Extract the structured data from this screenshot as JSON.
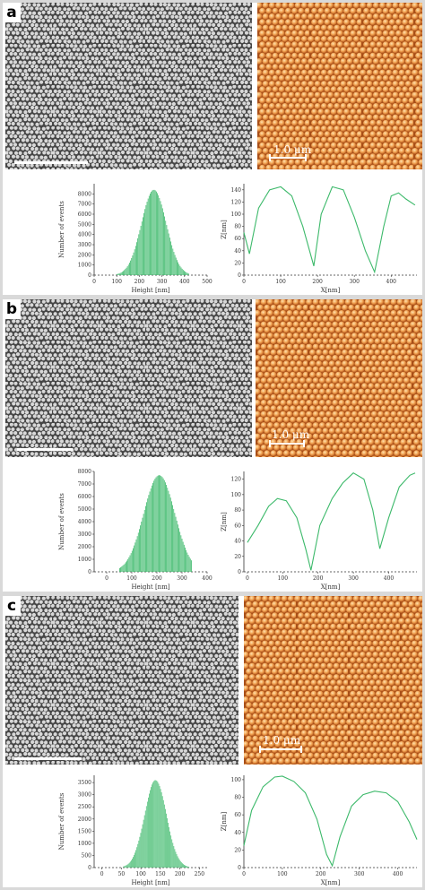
{
  "figure": {
    "panels": [
      {
        "label": "a",
        "afm_scale": "1.0 μm",
        "histogram": {
          "ylabel": "Number of events",
          "xlabel": "Height [nm]",
          "xticks": [
            "0",
            "100",
            "200",
            "300",
            "400",
            "500"
          ],
          "yticks": [
            "0",
            "1000",
            "2000",
            "3000",
            "4000",
            "5000",
            "6000",
            "7000",
            "8000"
          ],
          "xlim": [
            0,
            500
          ],
          "ylim": [
            0,
            9000
          ],
          "center": 265,
          "sigma": 55,
          "peak": 8400,
          "range": [
            100,
            420
          ],
          "color": "#3cb96a"
        },
        "profile": {
          "ylabel": "Z[nm]",
          "xlabel": "X[nm]",
          "xticks": [
            "0",
            "100",
            "200",
            "300",
            "400"
          ],
          "yticks": [
            "0",
            "20",
            "40",
            "60",
            "80",
            "100",
            "120",
            "140"
          ],
          "xlim": [
            0,
            470
          ],
          "ylim": [
            0,
            150
          ],
          "x": [
            0,
            15,
            40,
            70,
            100,
            130,
            160,
            190,
            210,
            240,
            270,
            300,
            330,
            355,
            380,
            400,
            420,
            440,
            465
          ],
          "y": [
            70,
            35,
            110,
            140,
            145,
            130,
            80,
            15,
            100,
            145,
            140,
            95,
            40,
            5,
            80,
            130,
            135,
            125,
            115
          ],
          "color": "#3cb96a"
        }
      },
      {
        "label": "b",
        "afm_scale": "1.0 μm",
        "histogram": {
          "ylabel": "Number of events",
          "xlabel": "Height [nm]",
          "xticks": [
            "0",
            "100",
            "200",
            "300",
            "400"
          ],
          "yticks": [
            "0",
            "1000",
            "2000",
            "3000",
            "4000",
            "5000",
            "6000",
            "7000",
            "8000"
          ],
          "xlim": [
            -50,
            400
          ],
          "ylim": [
            0,
            8000
          ],
          "center": 210,
          "sigma": 62,
          "peak": 7700,
          "range": [
            50,
            340
          ],
          "color": "#3cb96a"
        },
        "profile": {
          "ylabel": "Z[nm]",
          "xlabel": "X[nm]",
          "xticks": [
            "0",
            "100",
            "200",
            "300",
            "400"
          ],
          "yticks": [
            "0",
            "20",
            "40",
            "60",
            "80",
            "100",
            "120"
          ],
          "xlim": [
            -10,
            480
          ],
          "ylim": [
            0,
            130
          ],
          "x": [
            0,
            30,
            60,
            85,
            110,
            140,
            165,
            180,
            205,
            240,
            270,
            300,
            330,
            355,
            375,
            400,
            430,
            460,
            475
          ],
          "y": [
            38,
            60,
            85,
            95,
            92,
            70,
            30,
            2,
            60,
            95,
            115,
            128,
            120,
            80,
            30,
            70,
            110,
            125,
            128
          ],
          "color": "#3cb96a"
        }
      },
      {
        "label": "c",
        "afm_scale": "1.0 μm",
        "histogram": {
          "ylabel": "Number of events",
          "xlabel": "Height [nm]",
          "xticks": [
            "0",
            "50",
            "100",
            "150",
            "200",
            "250"
          ],
          "yticks": [
            "0",
            "500",
            "1000",
            "1500",
            "2000",
            "2500",
            "3000",
            "3500"
          ],
          "xlim": [
            -20,
            270
          ],
          "ylim": [
            0,
            3800
          ],
          "center": 138,
          "sigma": 28,
          "peak": 3600,
          "range": [
            55,
            225
          ],
          "color": "#3cb96a"
        },
        "profile": {
          "ylabel": "Z[nm]",
          "xlabel": "X[nm]",
          "xticks": [
            "0",
            "100",
            "200",
            "300",
            "400"
          ],
          "yticks": [
            "0",
            "20",
            "40",
            "60",
            "80",
            "100"
          ],
          "xlim": [
            0,
            450
          ],
          "ylim": [
            0,
            105
          ],
          "x": [
            0,
            20,
            50,
            80,
            100,
            130,
            160,
            190,
            215,
            230,
            250,
            280,
            310,
            340,
            370,
            400,
            430,
            450
          ],
          "y": [
            25,
            65,
            92,
            103,
            104,
            98,
            85,
            55,
            15,
            2,
            35,
            70,
            83,
            87,
            85,
            75,
            52,
            32
          ],
          "color": "#3cb96a"
        }
      }
    ]
  }
}
